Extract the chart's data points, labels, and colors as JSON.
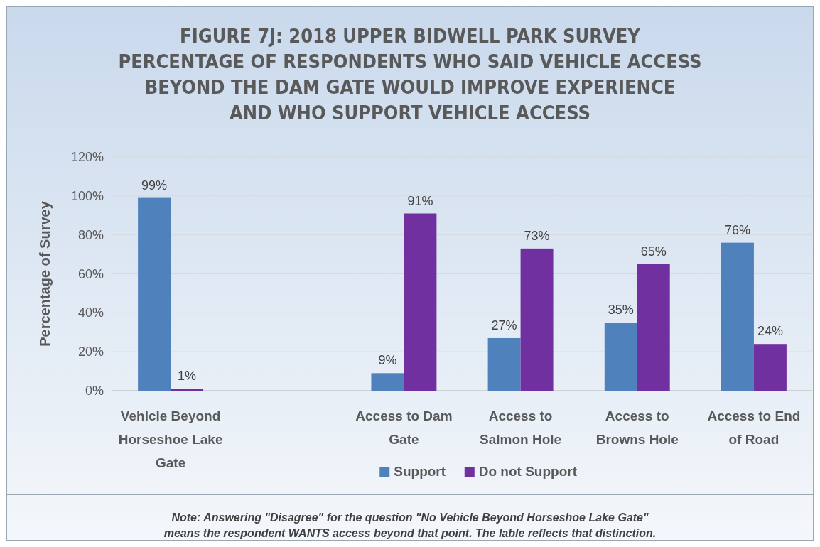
{
  "chart_data": {
    "type": "bar",
    "title": "FIGURE 7J: 2018 UPPER BIDWELL PARK SURVEY\nPERCENTAGE OF RESPONDENTS WHO SAID VEHICLE ACCESS\nBEYOND THE DAM GATE WOULD IMPROVE EXPERIENCE\nAND WHO SUPPORT VEHICLE ACCESS",
    "ylabel": "Percentage of Survey",
    "categories": [
      "Vehicle Beyond Horseshoe Lake Gate",
      null,
      "Access to Dam Gate",
      "Access to Salmon Hole",
      "Access to Browns Hole",
      "Access to End of Road"
    ],
    "series": [
      {
        "name": "Support",
        "color": "#4f81bd",
        "values": [
          99,
          null,
          9,
          27,
          35,
          76
        ],
        "value_labels": [
          "99%",
          null,
          "9%",
          "27%",
          "35%",
          "76%"
        ]
      },
      {
        "name": "Do not Support",
        "color": "#7030a0",
        "values": [
          1,
          null,
          91,
          73,
          65,
          24
        ],
        "value_labels": [
          "1%",
          null,
          "91%",
          "73%",
          "65%",
          "24%"
        ]
      }
    ],
    "ylim": [
      0,
      120
    ],
    "yticks": [
      {
        "value": 0,
        "label": "0%"
      },
      {
        "value": 20,
        "label": "20%"
      },
      {
        "value": 40,
        "label": "40%"
      },
      {
        "value": 60,
        "label": "60%"
      },
      {
        "value": 80,
        "label": "80%"
      },
      {
        "value": 100,
        "label": "100%"
      },
      {
        "value": 120,
        "label": "120%"
      }
    ],
    "grid": "y",
    "legend": "bottom",
    "annotations": [
      "Note: Answering \"Disagree\" for the question \"No Vehicle Beyond Horseshoe Lake Gate\"\nmeans the respondent WANTS access beyond that point.  The lable reflects that distinction."
    ]
  }
}
